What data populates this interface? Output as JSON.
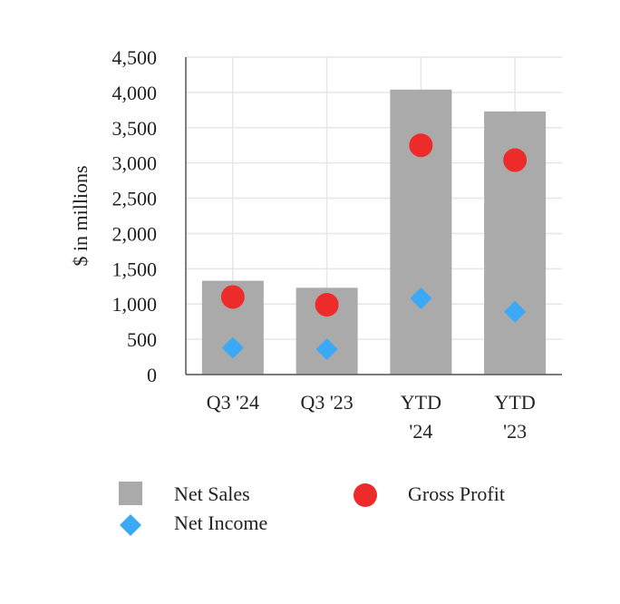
{
  "chart_data": {
    "type": "bar",
    "title": "",
    "xlabel": "",
    "ylabel": "$ in millions",
    "ylim": [
      0,
      4500
    ],
    "yticks": [
      0,
      500,
      1000,
      1500,
      2000,
      2500,
      3000,
      3500,
      4000,
      4500
    ],
    "ytick_labels": [
      "0",
      "500",
      "1,000",
      "1,500",
      "2,000",
      "2,500",
      "3,000",
      "3,500",
      "4,000",
      "4,500"
    ],
    "grid": true,
    "categories": [
      {
        "line1": "Q3 '24",
        "line2": ""
      },
      {
        "line1": "Q3 '23",
        "line2": ""
      },
      {
        "line1": "YTD",
        "line2": "'24"
      },
      {
        "line1": "YTD",
        "line2": "'23"
      }
    ],
    "series": [
      {
        "name": "Net Sales",
        "kind": "bar",
        "color": "#aaaaaa",
        "values": [
          1330,
          1230,
          4040,
          3730
        ]
      },
      {
        "name": "Gross Profit",
        "kind": "marker-circle",
        "color": "#ee2b2b",
        "values": [
          1100,
          990,
          3250,
          3040
        ]
      },
      {
        "name": "Net Income",
        "kind": "marker-diamond",
        "color": "#3ba9f5",
        "values": [
          380,
          360,
          1080,
          890
        ]
      }
    ],
    "legend": {
      "placement": "bottom",
      "items": [
        {
          "label": "Net Sales",
          "symbol": "square",
          "color": "#aaaaaa"
        },
        {
          "label": "Gross Profit",
          "symbol": "circle",
          "color": "#ee2b2b"
        },
        {
          "label": "Net Income",
          "symbol": "diamond",
          "color": "#3ba9f5"
        }
      ]
    }
  }
}
